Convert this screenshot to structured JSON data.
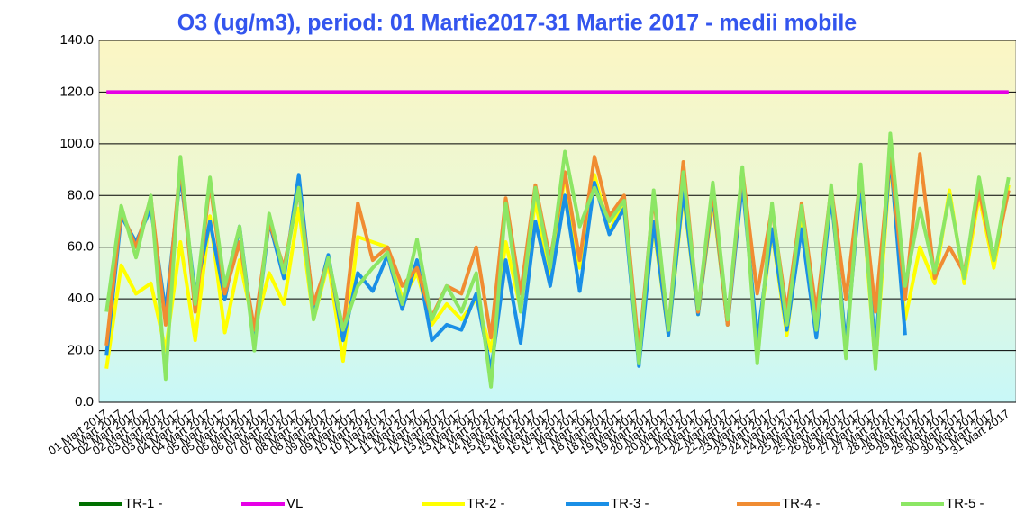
{
  "chart_data": {
    "type": "line",
    "title": "O3 (ug/m3), period: 01 Martie2017-31 Martie 2017 - medii mobile",
    "categories": [
      "01 Mart 2017",
      "01 Mart 2017",
      "02 Mart 2017",
      "02 Mart 2017",
      "03 Mart 2017",
      "03 Mart 2017",
      "04 Mart 2017",
      "04 Mart 2017",
      "05 Mart 2017",
      "05 Mart 2017",
      "06 Mart 2017",
      "06 Mart 2017",
      "07 Mart 2017",
      "07 Mart 2017",
      "08 Mart 2017",
      "08 Mart 2017",
      "09 Mart 2017",
      "09 Mart 2017",
      "10 Mart 2017",
      "10 Mart 2017",
      "11 Mart 2017",
      "11 Mart 2017",
      "12 Mart 2017",
      "12 Mart 2017",
      "13 Mart 2017",
      "13 Mart 2017",
      "14 Mart 2017",
      "14 Mart 2017",
      "15 Mart 2017",
      "15 Mart 2017",
      "16 Mart 2017",
      "16 Mart 2017",
      "17 Mart 2017",
      "17 Mart 2017",
      "18 Mart 2017",
      "18 Mart 2017",
      "19 Mart 2017",
      "19 Mart 2017",
      "20 Mart 2017",
      "20 Mart 2017",
      "21 Mart 2017",
      "21 Mart 2017",
      "22 Mart 2017",
      "22 Mart 2017",
      "23 Mart 2017",
      "23 Mart 2017",
      "24 Mart 2017",
      "24 Mart 2017",
      "25 Mart 2017",
      "25 Mart 2017",
      "26 Mart 2017",
      "26 Mart 2017",
      "27 Mart 2017",
      "27 Mart 2017",
      "28 Mart 2017",
      "28 Mart 2017",
      "29 Mart 2017",
      "29 Mart 2017",
      "30 Mart 2017",
      "30 Mart 2017",
      "31 Mart 2017",
      "31 Mart 2017"
    ],
    "series": [
      {
        "name": "TR-1 -",
        "color": "#007000",
        "values": [
          null,
          null,
          null,
          null,
          null,
          null,
          null,
          null,
          null,
          null,
          null,
          null,
          null,
          null,
          null,
          null,
          null,
          null,
          null,
          null,
          null,
          null,
          null,
          null,
          null,
          null,
          null,
          null,
          null,
          null,
          null,
          null,
          null,
          null,
          null,
          null,
          null,
          null,
          null,
          null,
          null,
          null,
          null,
          null,
          null,
          null,
          null,
          null,
          null,
          null,
          null,
          null,
          null,
          null,
          null,
          null,
          null,
          null,
          null,
          null,
          null,
          null
        ]
      },
      {
        "name": "VL",
        "color": "#e600e6",
        "values": [
          120,
          120,
          120,
          120,
          120,
          120,
          120,
          120,
          120,
          120,
          120,
          120,
          120,
          120,
          120,
          120,
          120,
          120,
          120,
          120,
          120,
          120,
          120,
          120,
          120,
          120,
          120,
          120,
          120,
          120,
          120,
          120,
          120,
          120,
          120,
          120,
          120,
          120,
          120,
          120,
          120,
          120,
          120,
          120,
          120,
          120,
          120,
          120,
          120,
          120,
          120,
          120,
          120,
          120,
          120,
          120,
          120,
          120,
          120,
          120,
          120,
          120
        ]
      },
      {
        "name": "TR-2 -",
        "color": "#ffff00",
        "values": [
          13,
          53,
          42,
          46,
          20,
          62,
          24,
          72,
          27,
          55,
          28,
          50,
          38,
          75,
          32,
          54,
          16,
          64,
          62,
          60,
          40,
          50,
          30,
          38,
          32,
          40,
          20,
          62,
          36,
          78,
          48,
          88,
          52,
          88,
          66,
          78,
          18,
          68,
          26,
          80,
          34,
          78,
          30,
          88,
          22,
          66,
          26,
          70,
          26,
          80,
          22,
          86,
          14,
          94,
          32,
          60,
          46,
          82,
          46,
          80,
          52,
          84
        ]
      },
      {
        "name": "TR-3 -",
        "color": "#1a8fe6",
        "values": [
          18,
          72,
          62,
          75,
          35,
          88,
          42,
          70,
          40,
          68,
          22,
          70,
          48,
          88,
          35,
          57,
          24,
          50,
          43,
          57,
          36,
          55,
          24,
          30,
          28,
          42,
          12,
          55,
          23,
          70,
          45,
          80,
          43,
          85,
          65,
          75,
          14,
          70,
          26,
          82,
          34,
          80,
          30,
          85,
          24,
          67,
          28,
          67,
          25,
          80,
          22,
          85,
          20,
          96,
          26,
          null,
          null,
          null,
          null,
          null,
          null,
          null
        ]
      },
      {
        "name": "TR-4 -",
        "color": "#f08c32",
        "values": [
          22,
          74,
          60,
          79,
          30,
          92,
          35,
          85,
          42,
          62,
          28,
          70,
          52,
          82,
          38,
          55,
          28,
          77,
          55,
          60,
          45,
          52,
          33,
          45,
          42,
          60,
          25,
          79,
          42,
          84,
          55,
          89,
          55,
          95,
          72,
          80,
          20,
          80,
          28,
          93,
          35,
          82,
          30,
          90,
          42,
          75,
          35,
          77,
          35,
          83,
          40,
          88,
          35,
          96,
          40,
          96,
          48,
          60,
          50,
          82,
          55,
          82
        ]
      },
      {
        "name": "TR-5 -",
        "color": "#8ce664",
        "values": [
          35,
          76,
          56,
          80,
          9,
          95,
          38,
          87,
          45,
          68,
          20,
          73,
          50,
          83,
          32,
          56,
          28,
          45,
          52,
          58,
          38,
          63,
          32,
          45,
          35,
          50,
          6,
          77,
          35,
          83,
          52,
          97,
          68,
          83,
          70,
          78,
          15,
          82,
          28,
          89,
          36,
          85,
          32,
          91,
          15,
          77,
          30,
          76,
          28,
          84,
          17,
          92,
          13,
          104,
          45,
          75,
          50,
          80,
          48,
          87,
          55,
          87
        ]
      }
    ],
    "ylim": [
      0,
      140
    ],
    "yticks": [
      {
        "value": 0,
        "label": "0.0"
      },
      {
        "value": 20,
        "label": "20.0"
      },
      {
        "value": 40,
        "label": "40.0"
      },
      {
        "value": 60,
        "label": "60.0"
      },
      {
        "value": 80,
        "label": "80.0"
      },
      {
        "value": 100,
        "label": "100.0"
      },
      {
        "value": 120,
        "label": "120.0"
      },
      {
        "value": 140,
        "label": "140.0"
      }
    ],
    "grid": true
  }
}
